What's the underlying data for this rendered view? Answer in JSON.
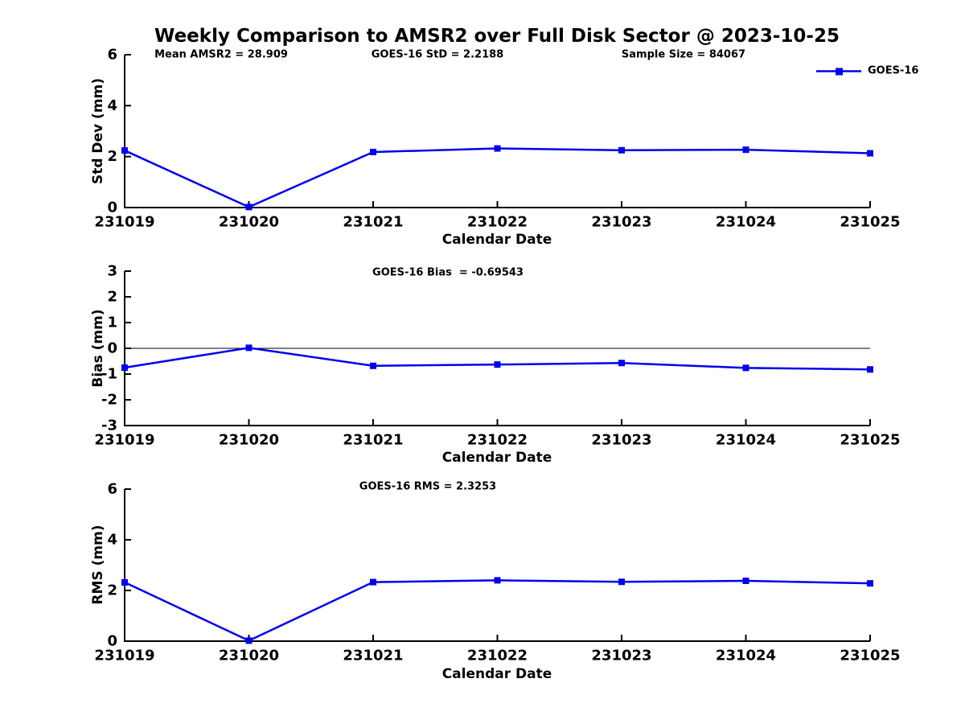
{
  "figure": {
    "title": "Weekly Comparison to AMSR2 over Full Disk Sector @ 2023-10-25",
    "header_annotations": [
      {
        "text": "Mean AMSR2 = 28.909"
      },
      {
        "text": "GOES-16 StD = 2.2188"
      },
      {
        "text": "Sample Size = 84067"
      }
    ],
    "legend": {
      "label": "GOES-16",
      "line_color": "#0000EE",
      "marker": "filled-square"
    },
    "text_color": "#000000",
    "background_color": "#ffffff"
  },
  "chart_data": [
    {
      "id": "stddev",
      "type": "line",
      "title": "",
      "annotation": "",
      "categories": [
        "231019",
        "231020",
        "231021",
        "231022",
        "231023",
        "231024",
        "231025"
      ],
      "series": [
        {
          "name": "GOES-16",
          "color": "#0000EE",
          "marker": "square",
          "values": [
            2.24,
            0.02,
            2.18,
            2.32,
            2.25,
            2.27,
            2.13
          ]
        }
      ],
      "xlabel": "Calendar Date",
      "ylabel": "Std Dev (mm)",
      "ylim": [
        0,
        6
      ],
      "yticks": [
        0,
        2,
        4,
        6
      ],
      "grid": false,
      "zero_line": false,
      "legend_position": "top-right-outside"
    },
    {
      "id": "bias",
      "type": "line",
      "title": "",
      "annotation": "GOES-16 Bias  = -0.69543",
      "categories": [
        "231019",
        "231020",
        "231021",
        "231022",
        "231023",
        "231024",
        "231025"
      ],
      "series": [
        {
          "name": "GOES-16",
          "color": "#0000EE",
          "marker": "square",
          "values": [
            -0.75,
            0.02,
            -0.68,
            -0.63,
            -0.57,
            -0.76,
            -0.82
          ]
        }
      ],
      "xlabel": "Calendar Date",
      "ylabel": "Bias (mm)",
      "ylim": [
        -3,
        3
      ],
      "yticks": [
        -3,
        -2,
        -1,
        0,
        1,
        2,
        3
      ],
      "grid": false,
      "zero_line": true,
      "legend_position": "none"
    },
    {
      "id": "rms",
      "type": "line",
      "title": "",
      "annotation": "GOES-16 RMS = 2.3253",
      "categories": [
        "231019",
        "231020",
        "231021",
        "231022",
        "231023",
        "231024",
        "231025"
      ],
      "series": [
        {
          "name": "GOES-16",
          "color": "#0000EE",
          "marker": "square",
          "values": [
            2.32,
            0.02,
            2.33,
            2.4,
            2.34,
            2.38,
            2.28
          ]
        }
      ],
      "xlabel": "Calendar Date",
      "ylabel": "RMS (mm)",
      "ylim": [
        0,
        6
      ],
      "yticks": [
        0,
        2,
        4,
        6
      ],
      "grid": false,
      "zero_line": false,
      "legend_position": "none"
    }
  ]
}
